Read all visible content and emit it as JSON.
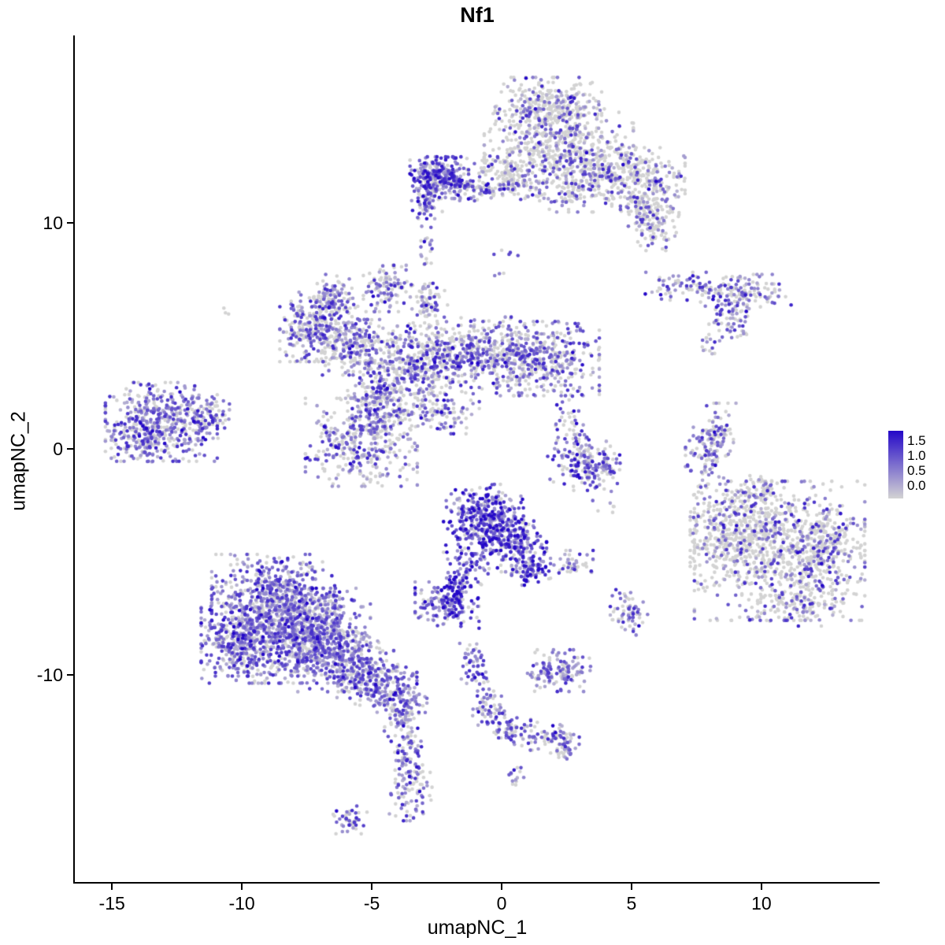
{
  "chart_data": {
    "type": "scatter",
    "title": "Nf1",
    "xlabel": "umapNC_1",
    "ylabel": "umapNC_2",
    "xlim": [
      -16.43,
      14.55
    ],
    "ylim": [
      -19.18,
      18.29
    ],
    "x_ticks": [
      -15,
      -10,
      -5,
      0,
      5,
      10
    ],
    "y_ticks": [
      -10,
      0,
      10
    ],
    "grid": false,
    "legend": {
      "position": "right",
      "tick_labels": [
        "1.5",
        "1.0",
        "0.5",
        "0.0"
      ],
      "tick_values": [
        1.5,
        1.0,
        0.5,
        0.0
      ],
      "low_color": "#d3d3d3",
      "high_color": "#2408c8",
      "vmin": 0.0,
      "vmax": 1.7
    },
    "point_radius_px": 2.3,
    "seed": 42,
    "clusters": [
      {
        "name": "cluster-top",
        "f": 0.3,
        "m": 0.5,
        "blobs": [
          [
            1.8,
            15.1,
            1.0,
            0.65,
            350
          ],
          [
            2.2,
            13.4,
            1.4,
            0.8,
            480
          ],
          [
            4.6,
            12.2,
            1.2,
            0.55,
            300
          ],
          [
            5.7,
            11.1,
            0.55,
            0.55,
            140
          ],
          [
            5.8,
            9.8,
            0.45,
            0.5,
            90
          ],
          [
            0.2,
            12.0,
            0.75,
            0.5,
            150
          ],
          [
            2.6,
            11.3,
            0.8,
            0.4,
            110
          ]
        ]
      },
      {
        "name": "cluster-topleft-dense",
        "f": 0.75,
        "m": 0.58,
        "blobs": [
          [
            -2.4,
            12.0,
            0.55,
            0.45,
            300
          ],
          [
            -2.9,
            10.9,
            0.3,
            0.35,
            60
          ],
          [
            -1.0,
            11.5,
            0.8,
            0.25,
            70
          ]
        ]
      },
      {
        "name": "strays-below-topleft",
        "f": 0.5,
        "m": 0.45,
        "blobs": [
          [
            -2.8,
            8.9,
            0.15,
            0.4,
            16
          ]
        ]
      },
      {
        "name": "cluster-middle-x",
        "f": 0.55,
        "m": 0.52,
        "blobs": [
          [
            -7.0,
            5.4,
            0.75,
            0.75,
            340
          ],
          [
            -6.4,
            6.8,
            0.4,
            0.45,
            80
          ],
          [
            -4.4,
            7.1,
            0.45,
            0.5,
            110
          ],
          [
            -2.8,
            6.5,
            0.35,
            0.45,
            70
          ],
          [
            -5.5,
            4.5,
            0.7,
            0.6,
            180
          ],
          [
            -3.2,
            3.8,
            1.1,
            0.8,
            400
          ],
          [
            -1.1,
            4.4,
            1.2,
            0.7,
            340
          ],
          [
            1.3,
            4.0,
            1.2,
            0.8,
            430
          ],
          [
            -5.4,
            0.3,
            1.05,
            0.95,
            400
          ],
          [
            -4.8,
            2.3,
            0.55,
            0.65,
            140
          ],
          [
            -2.5,
            1.7,
            0.8,
            0.5,
            130
          ]
        ]
      },
      {
        "name": "cluster-far-left",
        "f": 0.65,
        "m": 0.5,
        "blobs": [
          [
            -13.1,
            1.2,
            1.05,
            0.85,
            430
          ],
          [
            -11.4,
            1.4,
            0.45,
            0.45,
            80
          ],
          [
            -14.0,
            0.3,
            0.5,
            0.45,
            90
          ]
        ]
      },
      {
        "name": "cluster-right-streak",
        "f": 0.55,
        "m": 0.55,
        "blobs": [
          [
            7.0,
            7.2,
            0.75,
            0.3,
            80
          ],
          [
            9.4,
            6.9,
            0.85,
            0.4,
            130
          ],
          [
            8.8,
            5.8,
            0.4,
            0.5,
            60
          ],
          [
            8.0,
            4.5,
            0.2,
            0.25,
            8
          ]
        ]
      },
      {
        "name": "cluster-right-thin",
        "f": 0.55,
        "m": 0.5,
        "blobs": [
          [
            8.2,
            0.9,
            0.4,
            0.55,
            70
          ],
          [
            8.0,
            -0.4,
            0.45,
            0.6,
            80
          ]
        ]
      },
      {
        "name": "cluster-right-large",
        "f": 0.3,
        "m": 0.52,
        "blobs": [
          [
            10.7,
            -4.5,
            1.6,
            1.5,
            850
          ],
          [
            8.9,
            -3.5,
            0.8,
            0.95,
            260
          ],
          [
            12.5,
            -4.2,
            0.65,
            0.85,
            170
          ],
          [
            9.8,
            -2.0,
            0.5,
            0.4,
            70
          ],
          [
            11.5,
            -6.8,
            0.8,
            0.5,
            110
          ]
        ]
      },
      {
        "name": "cluster-center-dense",
        "f": 0.85,
        "m": 0.62,
        "blobs": [
          [
            -0.7,
            -3.1,
            0.75,
            0.75,
            380
          ],
          [
            0.5,
            -4.2,
            0.6,
            0.6,
            200
          ],
          [
            1.1,
            -5.2,
            0.35,
            0.4,
            80
          ],
          [
            -1.3,
            -5.2,
            0.4,
            0.6,
            80
          ],
          [
            -2.1,
            -6.9,
            0.6,
            0.5,
            170
          ],
          [
            -1.7,
            -6.0,
            0.3,
            0.35,
            40
          ]
        ]
      },
      {
        "name": "cluster-small-center-right",
        "f": 0.6,
        "m": 0.5,
        "blobs": [
          [
            2.7,
            -5.1,
            0.4,
            0.3,
            45
          ]
        ]
      },
      {
        "name": "cluster-bottom-left-large",
        "f": 0.75,
        "m": 0.5,
        "blobs": [
          [
            -8.7,
            -6.4,
            1.2,
            0.85,
            480
          ],
          [
            -8.9,
            -8.3,
            1.3,
            1.0,
            650
          ],
          [
            -7.0,
            -8.0,
            0.95,
            0.9,
            400
          ],
          [
            -6.0,
            -9.4,
            0.9,
            0.65,
            280
          ],
          [
            -4.8,
            -10.3,
            0.75,
            0.5,
            200
          ],
          [
            -10.3,
            -8.5,
            0.5,
            0.75,
            140
          ],
          [
            -3.9,
            -11.0,
            0.5,
            0.4,
            90
          ]
        ]
      },
      {
        "name": "tail-below-bottom-left",
        "f": 0.6,
        "m": 0.5,
        "blobs": [
          [
            -3.9,
            -11.9,
            0.3,
            0.5,
            60
          ],
          [
            -3.6,
            -13.0,
            0.25,
            0.5,
            45
          ],
          [
            -3.5,
            -14.9,
            0.4,
            0.75,
            110
          ],
          [
            -5.9,
            -16.4,
            0.35,
            0.3,
            45
          ]
        ]
      },
      {
        "name": "chain-bottom-middle",
        "f": 0.65,
        "m": 0.5,
        "blobs": [
          [
            -1.1,
            -9.6,
            0.25,
            0.5,
            55
          ],
          [
            -0.5,
            -11.4,
            0.3,
            0.55,
            60
          ],
          [
            0.3,
            -12.4,
            0.4,
            0.35,
            60
          ],
          [
            1.6,
            -12.7,
            0.5,
            0.3,
            55
          ],
          [
            2.5,
            -13.1,
            0.3,
            0.3,
            45
          ],
          [
            0.5,
            -14.5,
            0.2,
            0.2,
            14
          ]
        ]
      },
      {
        "name": "cluster-small-bottom",
        "f": 0.7,
        "m": 0.5,
        "blobs": [
          [
            2.2,
            -9.8,
            0.6,
            0.45,
            130
          ]
        ]
      },
      {
        "name": "cluster-tiny-bottom-right",
        "f": 0.6,
        "m": 0.5,
        "blobs": [
          [
            4.9,
            -7.2,
            0.35,
            0.5,
            65
          ]
        ]
      },
      {
        "name": "cluster-center-right-mid",
        "f": 0.65,
        "m": 0.55,
        "blobs": [
          [
            2.9,
            -0.6,
            0.55,
            0.6,
            130
          ],
          [
            3.9,
            -0.9,
            0.4,
            0.5,
            75
          ],
          [
            2.6,
            1.5,
            0.3,
            0.9,
            45
          ]
        ]
      },
      {
        "name": "isolated-strays",
        "f": 0.4,
        "m": 0.45,
        "blobs": [
          [
            -10.7,
            6.2,
            0.15,
            0.15,
            3
          ],
          [
            0.2,
            8.7,
            0.25,
            0.2,
            5
          ],
          [
            -2.9,
            9.7,
            0.1,
            0.2,
            3
          ],
          [
            8.1,
            4.6,
            0.2,
            0.2,
            6
          ],
          [
            4.0,
            -2.6,
            0.3,
            0.3,
            6
          ],
          [
            -0.2,
            7.8,
            0.15,
            0.15,
            3
          ]
        ]
      }
    ]
  }
}
